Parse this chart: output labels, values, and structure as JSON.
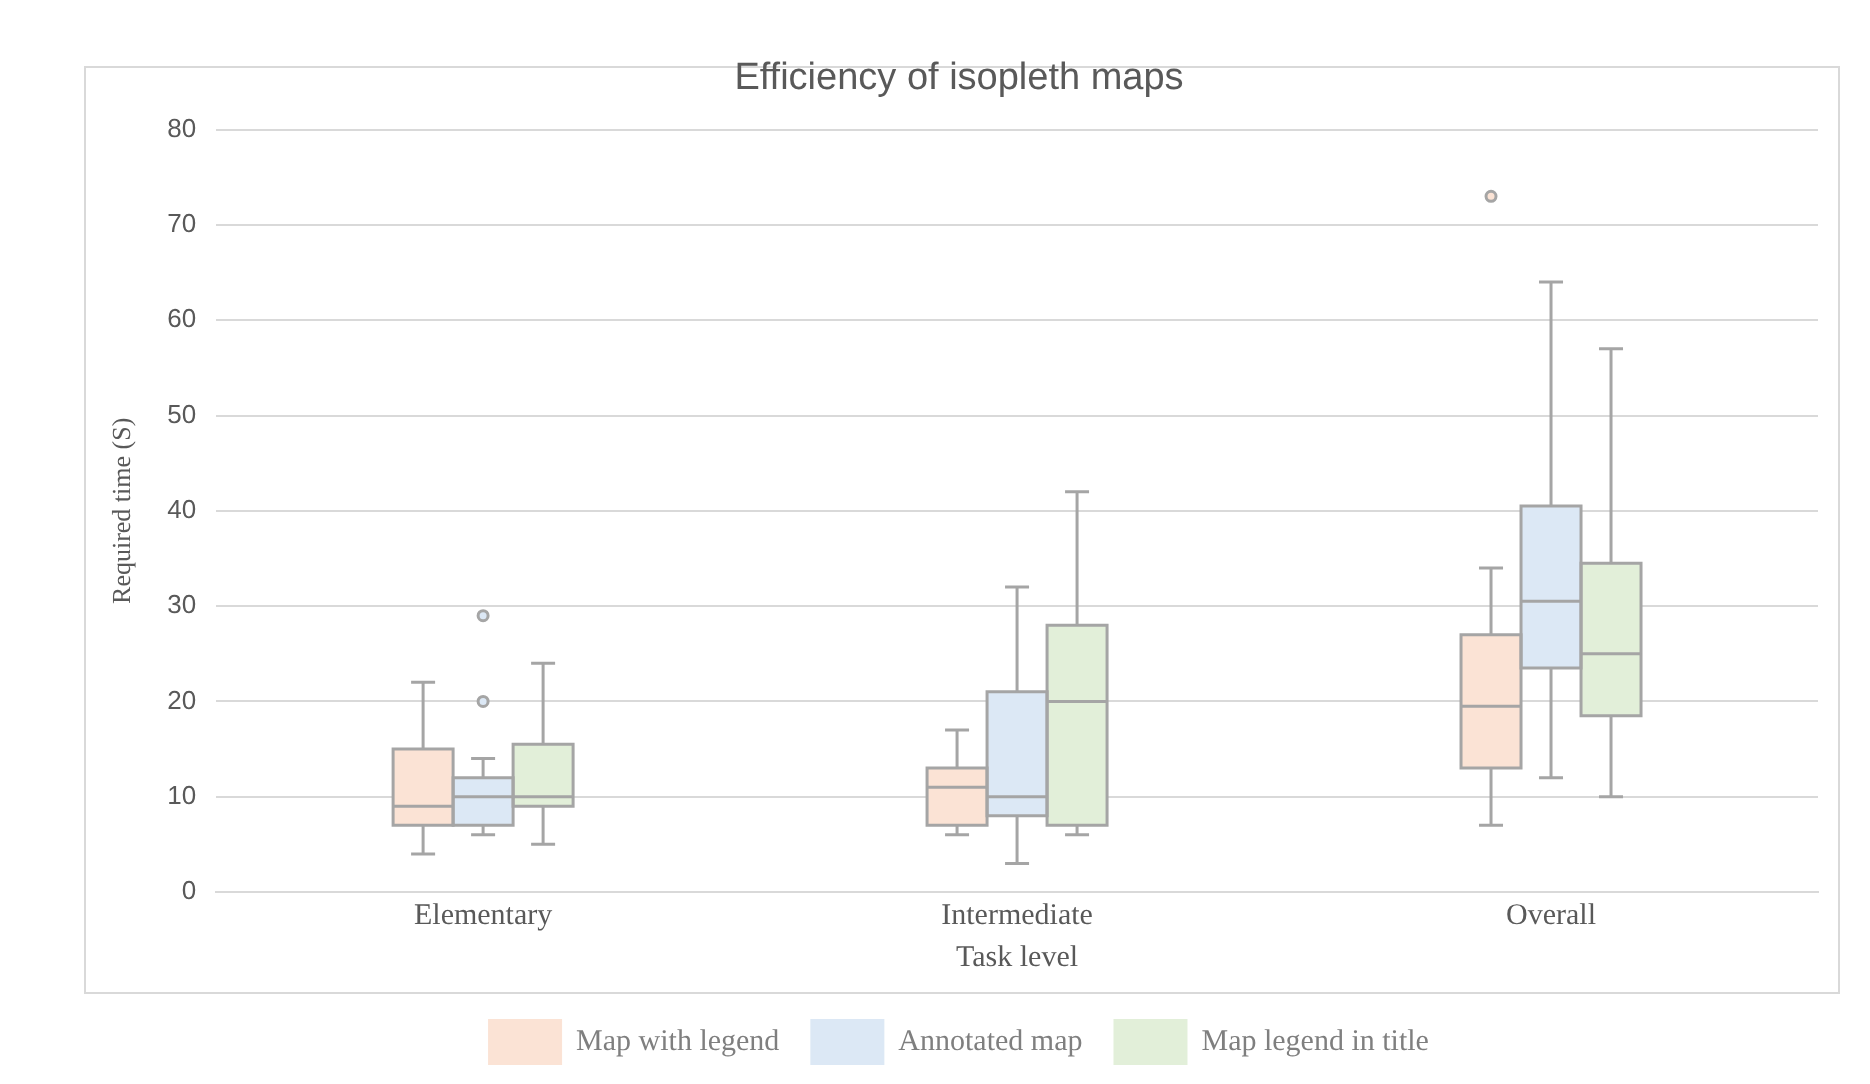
{
  "chart_data": {
    "type": "box",
    "title": "Efficiency of isopleth maps",
    "xlabel": "Task level",
    "ylabel": "Required time (S)",
    "categories": [
      "Elementary",
      "Intermediate",
      "Overall"
    ],
    "series": [
      {
        "name": "Map with legend",
        "color": "#fbe3d5",
        "boxes": [
          {
            "low": 4,
            "q1": 7,
            "median": 9,
            "q3": 15,
            "high": 22
          },
          {
            "low": 6,
            "q1": 7,
            "median": 11,
            "q3": 13,
            "high": 17
          },
          {
            "low": 7,
            "q1": 13,
            "median": 19.5,
            "q3": 27,
            "high": 34,
            "outliers": [
              73
            ]
          }
        ]
      },
      {
        "name": "Annotated map",
        "color": "#dce8f5",
        "boxes": [
          {
            "low": 6,
            "q1": 7,
            "median": 10,
            "q3": 12,
            "high": 14,
            "outliers": [
              20,
              29
            ]
          },
          {
            "low": 3,
            "q1": 8,
            "median": 10,
            "q3": 21,
            "high": 32
          },
          {
            "low": 12,
            "q1": 23.5,
            "median": 30.5,
            "q3": 40.5,
            "high": 64
          }
        ]
      },
      {
        "name": "Map legend in title",
        "color": "#e2efd9",
        "boxes": [
          {
            "low": 5,
            "q1": 9,
            "median": 10,
            "q3": 15.5,
            "high": 24
          },
          {
            "low": 6,
            "q1": 7,
            "median": 20,
            "q3": 28,
            "high": 42
          },
          {
            "low": 10,
            "q1": 18.5,
            "median": 25,
            "q3": 34.5,
            "high": 57
          }
        ]
      }
    ],
    "ylim": [
      0,
      80
    ],
    "yticks": [
      0,
      10,
      20,
      30,
      40,
      50,
      60,
      70,
      80
    ],
    "grid": "y",
    "legend": "bottom"
  }
}
